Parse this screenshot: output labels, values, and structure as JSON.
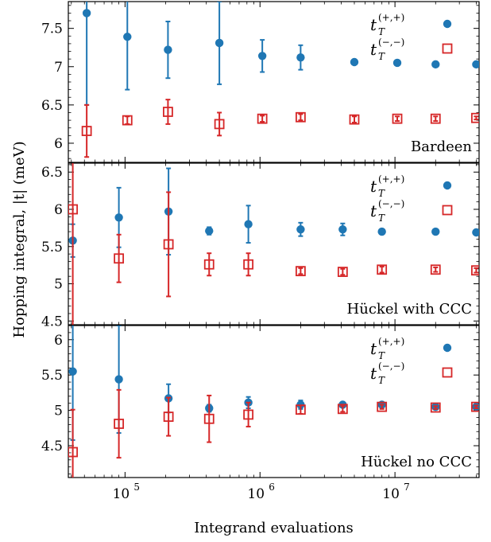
{
  "chart_data": {
    "type": "scatter",
    "xlabel": "Integrand evaluations",
    "ylabel": "Hopping integral, |t| (meV)",
    "xscale": "log",
    "xlim": [
      38000,
      42000000
    ],
    "x_tick_labels": [
      "10",
      "10",
      "10"
    ],
    "x_tick_exponents": [
      "5",
      "6",
      "7"
    ],
    "legend": {
      "placement": "top-right",
      "entries": [
        {
          "symbol": "t",
          "sub": "T",
          "sup": "(+,+)",
          "marker": "filled-circle",
          "color": "#1f77b4"
        },
        {
          "symbol": "t",
          "sub": "T",
          "sup": "(−,−)",
          "marker": "open-square",
          "color": "#d62728"
        }
      ]
    },
    "colors": {
      "blue": "#1f77b4",
      "red": "#d62728"
    },
    "panels": [
      {
        "label": "Bardeen",
        "ylim": [
          5.75,
          7.85
        ],
        "yticks": [
          6,
          6.5,
          7,
          7.5
        ],
        "ytick_labels": [
          "6",
          "6.5",
          "7",
          "7.5"
        ],
        "series": [
          {
            "key": "pp",
            "marker": "circle",
            "x": [
              52000,
              104000,
              208000,
              500000,
              1040000,
              2000000,
              5000000,
              10400000,
              20000000,
              40000000
            ],
            "y": [
              7.7,
              7.39,
              7.22,
              7.31,
              7.14,
              7.12,
              7.06,
              7.05,
              7.03,
              7.03
            ],
            "err": [
              1.2,
              0.69,
              0.37,
              0.54,
              0.21,
              0.16,
              0,
              0,
              0,
              0
            ]
          },
          {
            "key": "mm",
            "marker": "square",
            "x": [
              52000,
              104000,
              208000,
              500000,
              1040000,
              2000000,
              5000000,
              10400000,
              20000000,
              40000000
            ],
            "y": [
              6.16,
              6.3,
              6.41,
              6.25,
              6.32,
              6.34,
              6.31,
              6.32,
              6.32,
              6.33
            ],
            "err": [
              0.34,
              0.05,
              0.16,
              0.15,
              0.04,
              0.04,
              0.04,
              0.03,
              0.03,
              0.02
            ]
          }
        ]
      },
      {
        "label": "Hückel with CCC",
        "ylim": [
          4.45,
          6.62
        ],
        "yticks": [
          4.5,
          5,
          5.5,
          6,
          6.5
        ],
        "ytick_labels": [
          "4.5",
          "5",
          "5.5",
          "6",
          "6.5"
        ],
        "series": [
          {
            "key": "pp",
            "marker": "circle",
            "x": [
              41000,
              90000,
              210000,
              420000,
              820000,
              2000000,
              4100000,
              8000000,
              20000000,
              40000000
            ],
            "y": [
              5.58,
              5.89,
              5.97,
              5.71,
              5.8,
              5.73,
              5.73,
              5.7,
              5.7,
              5.69
            ],
            "err": [
              0.22,
              0.4,
              0.58,
              0.05,
              0.25,
              0.09,
              0.08,
              0,
              0,
              0
            ]
          },
          {
            "key": "mm",
            "marker": "square",
            "x": [
              41000,
              90000,
              210000,
              420000,
              820000,
              2000000,
              4100000,
              8000000,
              20000000,
              40000000
            ],
            "y": [
              6.0,
              5.34,
              5.53,
              5.26,
              5.26,
              5.17,
              5.16,
              5.19,
              5.19,
              5.18
            ],
            "err": [
              1.8,
              0.32,
              0.7,
              0.15,
              0.15,
              0.04,
              0.04,
              0.04,
              0.03,
              0.03
            ]
          }
        ]
      },
      {
        "label": "Hückel no CCC",
        "ylim": [
          4.05,
          6.2
        ],
        "yticks": [
          4.5,
          5,
          5.5,
          6
        ],
        "ytick_labels": [
          "4.5",
          "5",
          "5.5",
          "6"
        ],
        "series": [
          {
            "key": "pp",
            "marker": "circle",
            "x": [
              41000,
              90000,
              210000,
              420000,
              820000,
              2000000,
              4100000,
              8000000,
              20000000,
              40000000
            ],
            "y": [
              5.55,
              5.44,
              5.17,
              5.03,
              5.11,
              5.08,
              5.08,
              5.08,
              5.05,
              5.05
            ],
            "err": [
              0.97,
              0.76,
              0.2,
              0.05,
              0.08,
              0.06,
              0.03,
              0.03,
              0.02,
              0.02
            ]
          },
          {
            "key": "mm",
            "marker": "square",
            "x": [
              41000,
              90000,
              210000,
              420000,
              820000,
              2000000,
              4100000,
              8000000,
              20000000,
              40000000
            ],
            "y": [
              4.41,
              4.81,
              4.91,
              4.88,
              4.94,
              5.01,
              5.02,
              5.05,
              5.04,
              5.05
            ],
            "err": [
              0.6,
              0.48,
              0.27,
              0.33,
              0.17,
              0.06,
              0.04,
              0.03,
              0.02,
              0.02
            ]
          }
        ]
      }
    ]
  }
}
